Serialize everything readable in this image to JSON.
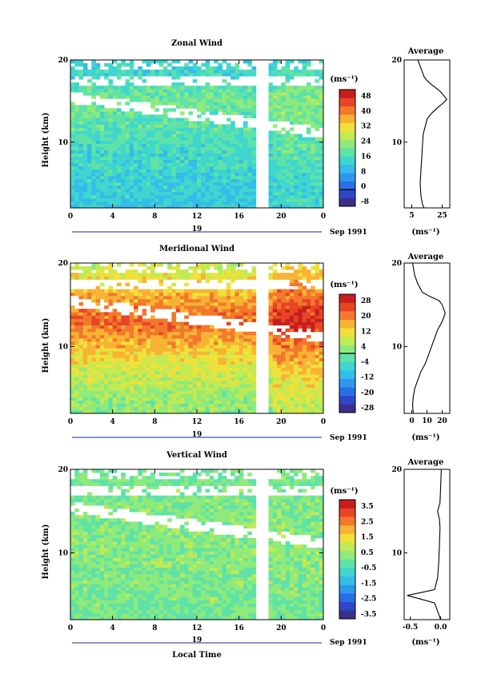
{
  "colorscale": [
    "#3a2f8a",
    "#2f46c8",
    "#2a6ee6",
    "#2f97ee",
    "#33bde8",
    "#3fd6cf",
    "#5fe2a8",
    "#8eea7a",
    "#c2ea52",
    "#f0e03a",
    "#f8b234",
    "#f3782b",
    "#e84525",
    "#c81e1e"
  ],
  "chart_data": [
    {
      "type": "heatmap",
      "title": "Zonal Wind",
      "xlabel": "",
      "ylabel": "Height (km)",
      "x_ticks": [
        "0",
        "4",
        "8",
        "12",
        "16",
        "20",
        "0"
      ],
      "xlim": [
        0,
        24
      ],
      "y_ticks": [
        "10",
        "20"
      ],
      "ylim": [
        2,
        20
      ],
      "date_label": "19",
      "date_suffix": "Sep 1991",
      "colorbar_unit": "(ms⁻¹)",
      "colorbar_labels": [
        "48",
        "40",
        "32",
        "24",
        "16",
        "8",
        "0",
        "-8"
      ],
      "colorbar_range": [
        -8,
        48
      ],
      "colorbar_zero_line": 0,
      "field": {
        "near_surface": 12,
        "peak": 20,
        "peak_height": 15,
        "top": 12,
        "mid_boost": 0
      },
      "profile": {
        "title": "Average",
        "x_ticks": [
          "5",
          "25"
        ],
        "xlim": [
          0,
          30
        ],
        "xlabel": "(ms⁻¹)",
        "y_ticks": [
          "10",
          "20"
        ],
        "points": [
          [
            13,
            2
          ],
          [
            12,
            2.5
          ],
          [
            11,
            3.5
          ],
          [
            10.5,
            5
          ],
          [
            11,
            6.5
          ],
          [
            11.5,
            8
          ],
          [
            12,
            9.5
          ],
          [
            12.5,
            11
          ],
          [
            14,
            12
          ],
          [
            15,
            12.8
          ],
          [
            18,
            13.5
          ],
          [
            22,
            14.2
          ],
          [
            26,
            14.8
          ],
          [
            28,
            15.2
          ],
          [
            26,
            15.7
          ],
          [
            23,
            16.3
          ],
          [
            18,
            17
          ],
          [
            15,
            17.5
          ],
          [
            13,
            18
          ],
          [
            12,
            18.5
          ],
          [
            11,
            19
          ],
          [
            10,
            19.5
          ],
          [
            9,
            20
          ]
        ]
      }
    },
    {
      "type": "heatmap",
      "title": "Meridional Wind",
      "xlabel": "",
      "ylabel": "Height (km)",
      "x_ticks": [
        "0",
        "4",
        "8",
        "12",
        "16",
        "20",
        "0"
      ],
      "xlim": [
        0,
        24
      ],
      "y_ticks": [
        "10",
        "20"
      ],
      "ylim": [
        2,
        20
      ],
      "date_label": "19",
      "date_suffix": "Sep 1991",
      "colorbar_unit": "(ms⁻¹)",
      "colorbar_labels": [
        "28",
        "20",
        "12",
        "4",
        "-4",
        "-12",
        "-20",
        "-28"
      ],
      "colorbar_range": [
        -28,
        28
      ],
      "colorbar_zero_line": 0,
      "field": {
        "near_surface": 2,
        "peak": 20,
        "peak_height": 13,
        "top": 6,
        "mid_boost": 0
      },
      "profile": {
        "title": "Average",
        "x_ticks": [
          "0",
          "10",
          "20"
        ],
        "xlim": [
          -5,
          25
        ],
        "xlabel": "(ms⁻¹)",
        "y_ticks": [
          "10",
          "20"
        ],
        "points": [
          [
            1,
            2
          ],
          [
            0.5,
            3
          ],
          [
            1,
            4
          ],
          [
            2,
            5
          ],
          [
            4,
            6
          ],
          [
            6,
            7
          ],
          [
            9,
            8
          ],
          [
            11,
            9
          ],
          [
            13,
            10
          ],
          [
            15,
            11
          ],
          [
            17,
            12
          ],
          [
            20,
            13
          ],
          [
            22,
            14
          ],
          [
            20,
            15
          ],
          [
            18,
            15.5
          ],
          [
            12,
            16
          ],
          [
            7,
            16.5
          ],
          [
            4,
            17.5
          ],
          [
            2,
            18.5
          ],
          [
            1,
            19.5
          ],
          [
            0.5,
            20
          ]
        ]
      }
    },
    {
      "type": "heatmap",
      "title": "Vertical Wind",
      "xlabel": "Local Time",
      "ylabel": "Height (km)",
      "x_ticks": [
        "0",
        "4",
        "8",
        "12",
        "16",
        "20",
        "0"
      ],
      "xlim": [
        0,
        24
      ],
      "y_ticks": [
        "10",
        "20"
      ],
      "ylim": [
        2,
        20
      ],
      "date_label": "19",
      "date_suffix": "Sep 1991",
      "colorbar_unit": "(ms⁻¹)",
      "colorbar_labels": [
        "3.5",
        "2.5",
        "1.5",
        "0.5",
        "-0.5",
        "-1.5",
        "-2.5",
        "-3.5"
      ],
      "colorbar_range": [
        -3.5,
        3.5
      ],
      "colorbar_zero_line": null,
      "field": {
        "near_surface": 0,
        "peak": 0.2,
        "peak_height": 10,
        "top": 0,
        "mid_boost": 0
      },
      "profile": {
        "title": "Average",
        "x_ticks": [
          "-0.5",
          "0.0"
        ],
        "xlim": [
          -0.6,
          0.15
        ],
        "xlabel": "(ms⁻¹)",
        "y_ticks": [
          "10",
          "20"
        ],
        "points": [
          [
            0.0,
            2
          ],
          [
            -0.05,
            3
          ],
          [
            -0.1,
            4
          ],
          [
            -0.4,
            4.6
          ],
          [
            -0.55,
            4.9
          ],
          [
            -0.35,
            5.2
          ],
          [
            -0.1,
            5.6
          ],
          [
            -0.05,
            7
          ],
          [
            -0.03,
            9
          ],
          [
            -0.02,
            11
          ],
          [
            -0.01,
            13
          ],
          [
            -0.02,
            14
          ],
          [
            -0.05,
            15
          ],
          [
            -0.01,
            16
          ],
          [
            0.0,
            18
          ],
          [
            0.01,
            20
          ]
        ]
      }
    }
  ]
}
